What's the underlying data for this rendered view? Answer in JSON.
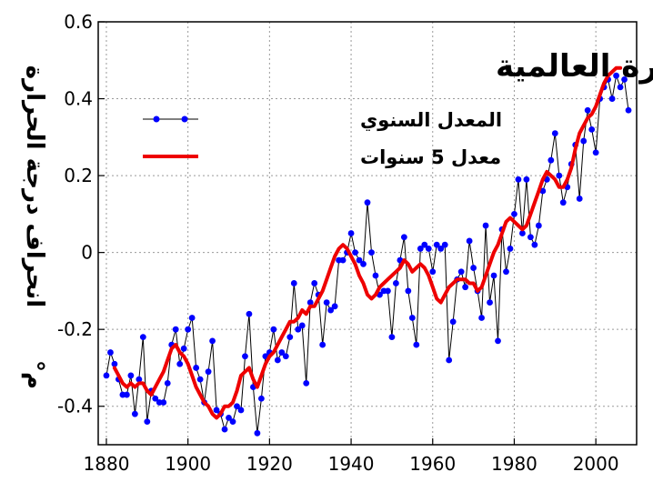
{
  "chart_data": {
    "type": "line",
    "title": "درجات الحرارة العالمية",
    "ylabel": "انحراف درجة الحرارة",
    "yunit": "م°",
    "xlabel": "",
    "xlim": [
      1878,
      2010
    ],
    "ylim": [
      -0.5,
      0.6
    ],
    "xticks": [
      1880,
      1900,
      1920,
      1940,
      1960,
      1980,
      2000
    ],
    "yticks": [
      -0.4,
      -0.2,
      0,
      0.2,
      0.4,
      0.6
    ],
    "ytick_labels": [
      "-0.4",
      "-0.2",
      "0",
      "0.2",
      "0.4",
      "0.6"
    ],
    "grid": true,
    "legend_position": "top-left",
    "series": [
      {
        "name": "المعدل السنوي",
        "color": "#0000ff",
        "line_color": "#000000",
        "marker": "circle",
        "x": [
          1880,
          1881,
          1882,
          1883,
          1884,
          1885,
          1886,
          1887,
          1888,
          1889,
          1890,
          1891,
          1892,
          1893,
          1894,
          1895,
          1896,
          1897,
          1898,
          1899,
          1900,
          1901,
          1902,
          1903,
          1904,
          1905,
          1906,
          1907,
          1908,
          1909,
          1910,
          1911,
          1912,
          1913,
          1914,
          1915,
          1916,
          1917,
          1918,
          1919,
          1920,
          1921,
          1922,
          1923,
          1924,
          1925,
          1926,
          1927,
          1928,
          1929,
          1930,
          1931,
          1932,
          1933,
          1934,
          1935,
          1936,
          1937,
          1938,
          1939,
          1940,
          1941,
          1942,
          1943,
          1944,
          1945,
          1946,
          1947,
          1948,
          1949,
          1950,
          1951,
          1952,
          1953,
          1954,
          1955,
          1956,
          1957,
          1958,
          1959,
          1960,
          1961,
          1962,
          1963,
          1964,
          1965,
          1966,
          1967,
          1968,
          1969,
          1970,
          1971,
          1972,
          1973,
          1974,
          1975,
          1976,
          1977,
          1978,
          1979,
          1980,
          1981,
          1982,
          1983,
          1984,
          1985,
          1986,
          1987,
          1988,
          1989,
          1990,
          1991,
          1992,
          1993,
          1994,
          1995,
          1996,
          1997,
          1998,
          1999,
          2000,
          2001,
          2002,
          2003,
          2004,
          2005,
          2006,
          2007,
          2008
        ],
        "values": [
          -0.32,
          -0.26,
          -0.29,
          -0.33,
          -0.37,
          -0.37,
          -0.32,
          -0.42,
          -0.33,
          -0.22,
          -0.44,
          -0.36,
          -0.38,
          -0.39,
          -0.39,
          -0.34,
          -0.24,
          -0.2,
          -0.29,
          -0.25,
          -0.2,
          -0.17,
          -0.3,
          -0.33,
          -0.39,
          -0.31,
          -0.23,
          -0.41,
          -0.42,
          -0.46,
          -0.43,
          -0.44,
          -0.4,
          -0.41,
          -0.27,
          -0.16,
          -0.35,
          -0.47,
          -0.38,
          -0.27,
          -0.26,
          -0.2,
          -0.28,
          -0.26,
          -0.27,
          -0.22,
          -0.08,
          -0.2,
          -0.19,
          -0.34,
          -0.13,
          -0.08,
          -0.11,
          -0.24,
          -0.13,
          -0.15,
          -0.14,
          -0.02,
          -0.02,
          0.0,
          0.05,
          0.0,
          -0.02,
          -0.03,
          0.13,
          0.0,
          -0.06,
          -0.11,
          -0.1,
          -0.1,
          -0.22,
          -0.08,
          -0.02,
          0.04,
          -0.1,
          -0.17,
          -0.24,
          0.01,
          0.02,
          0.01,
          -0.05,
          0.02,
          0.01,
          0.02,
          -0.28,
          -0.18,
          -0.07,
          -0.05,
          -0.09,
          0.03,
          -0.04,
          -0.1,
          -0.17,
          0.07,
          -0.13,
          -0.06,
          -0.23,
          0.06,
          -0.05,
          0.01,
          0.1,
          0.19,
          0.05,
          0.19,
          0.04,
          0.02,
          0.07,
          0.16,
          0.19,
          0.24,
          0.31,
          0.2,
          0.13,
          0.17,
          0.23,
          0.28,
          0.14,
          0.29,
          0.37,
          0.32,
          0.26,
          0.4,
          0.43,
          0.45,
          0.4,
          0.46,
          0.43,
          0.45,
          0.37
        ]
      },
      {
        "name": "معدل 5 سنوات",
        "color": "#ee0000",
        "x": [
          1882,
          1883,
          1884,
          1885,
          1886,
          1887,
          1888,
          1889,
          1890,
          1891,
          1892,
          1893,
          1894,
          1895,
          1896,
          1897,
          1898,
          1899,
          1900,
          1901,
          1902,
          1903,
          1904,
          1905,
          1906,
          1907,
          1908,
          1909,
          1910,
          1911,
          1912,
          1913,
          1914,
          1915,
          1916,
          1917,
          1918,
          1919,
          1920,
          1921,
          1922,
          1923,
          1924,
          1925,
          1926,
          1927,
          1928,
          1929,
          1930,
          1931,
          1932,
          1933,
          1934,
          1935,
          1936,
          1937,
          1938,
          1939,
          1940,
          1941,
          1942,
          1943,
          1944,
          1945,
          1946,
          1947,
          1948,
          1949,
          1950,
          1951,
          1952,
          1953,
          1954,
          1955,
          1956,
          1957,
          1958,
          1959,
          1960,
          1961,
          1962,
          1963,
          1964,
          1965,
          1966,
          1967,
          1968,
          1969,
          1970,
          1971,
          1972,
          1973,
          1974,
          1975,
          1976,
          1977,
          1978,
          1979,
          1980,
          1981,
          1982,
          1983,
          1984,
          1985,
          1986,
          1987,
          1988,
          1989,
          1990,
          1991,
          1992,
          1993,
          1994,
          1995,
          1996,
          1997,
          1998,
          1999,
          2000,
          2001,
          2002,
          2003,
          2004,
          2005,
          2006
        ],
        "values": [
          -0.3,
          -0.32,
          -0.34,
          -0.35,
          -0.34,
          -0.35,
          -0.34,
          -0.34,
          -0.36,
          -0.37,
          -0.35,
          -0.33,
          -0.31,
          -0.28,
          -0.25,
          -0.24,
          -0.26,
          -0.27,
          -0.29,
          -0.32,
          -0.35,
          -0.37,
          -0.39,
          -0.4,
          -0.42,
          -0.43,
          -0.42,
          -0.4,
          -0.4,
          -0.39,
          -0.36,
          -0.32,
          -0.31,
          -0.3,
          -0.33,
          -0.35,
          -0.32,
          -0.29,
          -0.27,
          -0.26,
          -0.24,
          -0.22,
          -0.2,
          -0.18,
          -0.18,
          -0.17,
          -0.15,
          -0.16,
          -0.14,
          -0.14,
          -0.12,
          -0.1,
          -0.07,
          -0.04,
          -0.01,
          0.01,
          0.02,
          0.01,
          -0.01,
          -0.03,
          -0.06,
          -0.08,
          -0.11,
          -0.12,
          -0.11,
          -0.09,
          -0.08,
          -0.07,
          -0.06,
          -0.05,
          -0.04,
          -0.02,
          -0.03,
          -0.05,
          -0.04,
          -0.03,
          -0.04,
          -0.06,
          -0.09,
          -0.12,
          -0.13,
          -0.11,
          -0.09,
          -0.08,
          -0.07,
          -0.07,
          -0.07,
          -0.08,
          -0.08,
          -0.1,
          -0.09,
          -0.06,
          -0.03,
          0.0,
          0.02,
          0.05,
          0.08,
          0.09,
          0.08,
          0.07,
          0.06,
          0.07,
          0.1,
          0.13,
          0.16,
          0.19,
          0.21,
          0.2,
          0.19,
          0.17,
          0.17,
          0.19,
          0.22,
          0.27,
          0.31,
          0.33,
          0.35,
          0.36,
          0.38,
          0.41,
          0.44,
          0.46,
          0.47,
          0.48,
          0.48
        ]
      }
    ]
  }
}
